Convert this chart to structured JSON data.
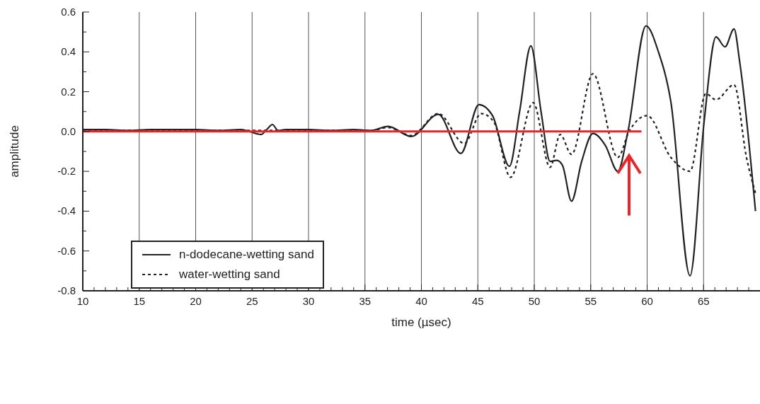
{
  "chart_data": {
    "type": "line",
    "xlabel": "time (µsec)",
    "ylabel": "amplitude",
    "xlim": [
      10,
      70
    ],
    "ylim": [
      -0.8,
      0.6
    ],
    "xticks": [
      10,
      {
        "value": 11,
        "label": null
      },
      {
        "value": 12,
        "label": null
      },
      {
        "value": 13,
        "label": null
      },
      {
        "value": 14,
        "label": null
      },
      15,
      {
        "value": 16,
        "label": null
      },
      {
        "value": 17,
        "label": null
      },
      {
        "value": 18,
        "label": null
      },
      {
        "value": 19,
        "label": null
      },
      20,
      {
        "value": 21,
        "label": null
      },
      {
        "value": 22,
        "label": null
      },
      {
        "value": 23,
        "label": null
      },
      {
        "value": 24,
        "label": null
      },
      25,
      {
        "value": 26,
        "label": null
      },
      {
        "value": 27,
        "label": null
      },
      {
        "value": 28,
        "label": null
      },
      {
        "value": 29,
        "label": null
      },
      30,
      {
        "value": 31,
        "label": null
      },
      {
        "value": 32,
        "label": null
      },
      {
        "value": 33,
        "label": null
      },
      {
        "value": 34,
        "label": null
      },
      35,
      {
        "value": 36,
        "label": null
      },
      {
        "value": 37,
        "label": null
      },
      {
        "value": 38,
        "label": null
      },
      {
        "value": 39,
        "label": null
      },
      40,
      {
        "value": 41,
        "label": null
      },
      {
        "value": 42,
        "label": null
      },
      {
        "value": 43,
        "label": null
      },
      {
        "value": 44,
        "label": null
      },
      45,
      {
        "value": 46,
        "label": null
      },
      {
        "value": 47,
        "label": null
      },
      {
        "value": 48,
        "label": null
      },
      {
        "value": 49,
        "label": null
      },
      50,
      {
        "value": 51,
        "label": null
      },
      {
        "value": 52,
        "label": null
      },
      {
        "value": 53,
        "label": null
      },
      {
        "value": 54,
        "label": null
      },
      55,
      {
        "value": 56,
        "label": null
      },
      {
        "value": 57,
        "label": null
      },
      {
        "value": 58,
        "label": null
      },
      {
        "value": 59,
        "label": null
      },
      60,
      {
        "value": 61,
        "label": null
      },
      {
        "value": 62,
        "label": null
      },
      {
        "value": 63,
        "label": null
      },
      {
        "value": 64,
        "label": null
      },
      65,
      {
        "value": 66,
        "label": null
      },
      {
        "value": 67,
        "label": null
      },
      {
        "value": 68,
        "label": null
      },
      {
        "value": 69,
        "label": null
      }
    ],
    "yticks": [
      -0.8,
      {
        "value": -0.7,
        "label": null
      },
      -0.6,
      {
        "value": -0.5,
        "label": null
      },
      -0.4,
      {
        "value": -0.3,
        "label": null
      },
      -0.2,
      {
        "value": -0.1,
        "label": null
      },
      {
        "value": 0,
        "label": "0.0"
      },
      {
        "value": 0.1,
        "label": null
      },
      0.2,
      {
        "value": 0.3,
        "label": null
      },
      0.4,
      {
        "value": 0.5,
        "label": null
      },
      0.6
    ],
    "grid": "x",
    "legend": "bottom left",
    "marker": "none",
    "series": [
      {
        "name": "n-dodecane-wetting sand",
        "color": "#222222",
        "line_style": "solid",
        "x": [
          10,
          12,
          14,
          16,
          18,
          20,
          22,
          24,
          25.8,
          26.3,
          26.8,
          27.3,
          28,
          30,
          32,
          34,
          35.5,
          37.05,
          39.1,
          41.5,
          43.5,
          45.1,
          46.3,
          47.8,
          48.7,
          49.7,
          50.6,
          51.4,
          52.0,
          52.5,
          53.3,
          54.2,
          55.2,
          56.3,
          57.4,
          58.3,
          59.9,
          61,
          62.1,
          63.8,
          65.05,
          66.1,
          66.9,
          67.7,
          68.2,
          69.6
        ],
        "values": [
          0.01,
          0.01,
          0.005,
          0.01,
          0.01,
          0.01,
          0.005,
          0.01,
          -0.015,
          0.01,
          0.035,
          0.005,
          0.01,
          0.01,
          0.005,
          0.01,
          0.005,
          0.026,
          -0.025,
          0.086,
          -0.11,
          0.135,
          0.08,
          -0.175,
          0.1,
          0.43,
          0.1,
          -0.15,
          -0.145,
          -0.17,
          -0.35,
          -0.15,
          -0.01,
          -0.07,
          -0.2,
          0,
          0.53,
          0.4,
          0.15,
          -0.725,
          0.05,
          0.475,
          0.425,
          0.515,
          0.35,
          -0.4
        ]
      },
      {
        "name": "water-wetting sand",
        "color": "#222222",
        "line_style": "dashed",
        "x": [
          10,
          15,
          20,
          25,
          30,
          35.5,
          37.05,
          39.1,
          41.5,
          43.8,
          45.3,
          46.4,
          47.9,
          49.9,
          51.4,
          52.3,
          53.3,
          55.2,
          57.4,
          58.4,
          60.0,
          62.1,
          63.8,
          65.2,
          66.1,
          67.7,
          68.8,
          69.6
        ],
        "values": [
          0.005,
          0.005,
          0.005,
          0.005,
          0.005,
          0.005,
          0.02,
          -0.02,
          0.09,
          -0.06,
          0.09,
          0.05,
          -0.23,
          0.145,
          -0.18,
          -0.015,
          -0.115,
          0.29,
          -0.13,
          0,
          0.08,
          -0.13,
          -0.2,
          0.19,
          0.16,
          0.235,
          -0.13,
          -0.31
        ]
      },
      {
        "color": "#e8262a",
        "line_style": "solid",
        "x": [
          10,
          59.5
        ],
        "values": [
          0,
          0
        ]
      }
    ]
  }
}
